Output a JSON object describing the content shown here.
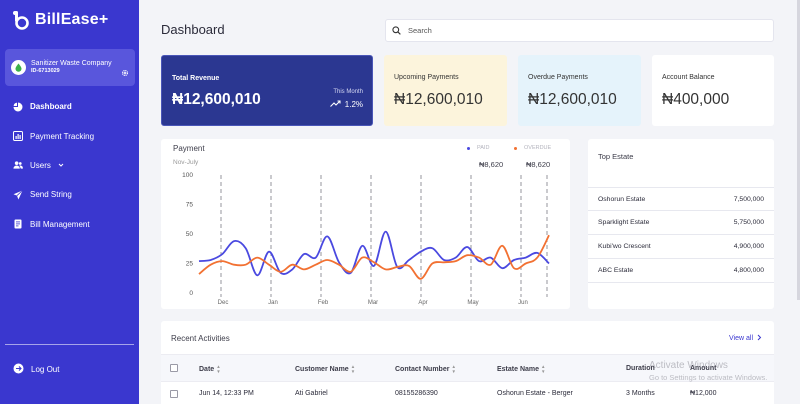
{
  "app": {
    "name": "BillEase+"
  },
  "sidebar": {
    "company": {
      "name": "Sanitizer Waste Company",
      "id": "ID-6713029"
    },
    "items": [
      {
        "label": "Dashboard",
        "icon": "dashboard-icon",
        "active": true
      },
      {
        "label": "Payment Tracking",
        "icon": "bar-chart-icon",
        "active": false
      },
      {
        "label": "Users",
        "icon": "users-icon",
        "active": false
      },
      {
        "label": "Send String",
        "icon": "send-icon",
        "active": false
      },
      {
        "label": "Bill Management",
        "icon": "document-icon",
        "active": false
      }
    ],
    "logout_label": "Log Out"
  },
  "header": {
    "title": "Dashboard",
    "search_placeholder": "Search"
  },
  "stats": {
    "revenue": {
      "label": "Total Revenue",
      "value": "₦12,600,010",
      "period": "This Month",
      "change": "1.2%"
    },
    "upcoming": {
      "label": "Upcoming Payments",
      "value": "₦12,600,010"
    },
    "overdue": {
      "label": "Overdue Payments",
      "value": "₦12,600,010"
    },
    "balance": {
      "label": "Account Balance",
      "value": "₦400,000"
    }
  },
  "payment_chart": {
    "title": "Payment",
    "subtitle": "Nov-July",
    "legend": {
      "paid_label": "PAID",
      "paid_value": "₦8,620",
      "overdue_label": "OVERDUE",
      "overdue_value": "₦8,620"
    }
  },
  "chart_data": {
    "type": "line",
    "x": [
      "Dec",
      "Jan",
      "Feb",
      "Mar",
      "Apr",
      "May",
      "Jun"
    ],
    "yticks": [
      0,
      25,
      50,
      75,
      100
    ],
    "ylim": [
      0,
      100
    ],
    "series": [
      {
        "name": "PAID",
        "color": "#4a49e0",
        "points": [
          [
            0,
            27
          ],
          [
            0.5,
            28
          ],
          [
            1,
            33
          ],
          [
            1.5,
            44
          ],
          [
            2,
            38
          ],
          [
            2.5,
            15
          ],
          [
            3,
            35
          ],
          [
            3.5,
            17
          ],
          [
            4,
            20
          ],
          [
            4.5,
            33
          ],
          [
            5,
            30
          ],
          [
            5.5,
            48
          ],
          [
            6,
            26
          ],
          [
            6.5,
            17
          ],
          [
            7,
            40
          ],
          [
            7.5,
            23
          ],
          [
            8,
            52
          ],
          [
            8.5,
            22
          ],
          [
            9,
            28
          ],
          [
            9.5,
            35
          ],
          [
            10,
            38
          ],
          [
            10.5,
            28
          ],
          [
            11,
            30
          ],
          [
            11.5,
            39
          ],
          [
            12,
            27
          ],
          [
            12.5,
            30
          ],
          [
            13,
            21
          ],
          [
            13.5,
            28
          ],
          [
            14,
            30
          ],
          [
            14.5,
            34
          ],
          [
            15,
            25
          ]
        ]
      },
      {
        "name": "OVERDUE",
        "color": "#f27132",
        "points": [
          [
            0,
            16
          ],
          [
            0.5,
            24
          ],
          [
            1,
            27
          ],
          [
            1.5,
            24
          ],
          [
            2,
            24
          ],
          [
            2.5,
            30
          ],
          [
            3,
            24
          ],
          [
            3.5,
            18
          ],
          [
            4,
            24
          ],
          [
            4.5,
            20
          ],
          [
            5,
            24
          ],
          [
            5.5,
            28
          ],
          [
            6,
            24
          ],
          [
            6.5,
            18
          ],
          [
            7,
            30
          ],
          [
            7.5,
            26
          ],
          [
            8,
            20
          ],
          [
            8.5,
            22
          ],
          [
            9,
            23
          ],
          [
            9.5,
            12
          ],
          [
            10,
            25
          ],
          [
            10.5,
            26
          ],
          [
            11,
            27
          ],
          [
            11.5,
            32
          ],
          [
            12,
            30
          ],
          [
            12.5,
            24
          ],
          [
            13,
            40
          ],
          [
            13.5,
            21
          ],
          [
            14,
            25
          ],
          [
            14.5,
            30
          ],
          [
            15,
            49
          ]
        ]
      }
    ],
    "grid": "dashed vertical lines",
    "legend_position": "top-right"
  },
  "top_estate": {
    "title": "Top Estate",
    "rows": [
      {
        "name": "Oshorun Estate",
        "value": "7,500,000"
      },
      {
        "name": "Sparklight Estate",
        "value": "5,750,000"
      },
      {
        "name": "Kubi'wo Crescent",
        "value": "4,900,000"
      },
      {
        "name": "ABC Estate",
        "value": "4,800,000"
      }
    ]
  },
  "activities": {
    "title": "Recent Activities",
    "view_all": "View all",
    "columns": [
      "Date",
      "Customer Name",
      "Contact Number",
      "Estate Name",
      "Duration",
      "Amount"
    ],
    "rows": [
      {
        "date": "Jun 14, 12:33 PM",
        "customer": "Ati Gabriel",
        "contact": "08155286390",
        "estate": "Oshorun Estate - Berger",
        "duration": "3 Months",
        "amount": "₦12,000"
      }
    ]
  },
  "watermark": {
    "line1": "Activate Windows",
    "line2": "Go to Settings to activate Windows."
  }
}
